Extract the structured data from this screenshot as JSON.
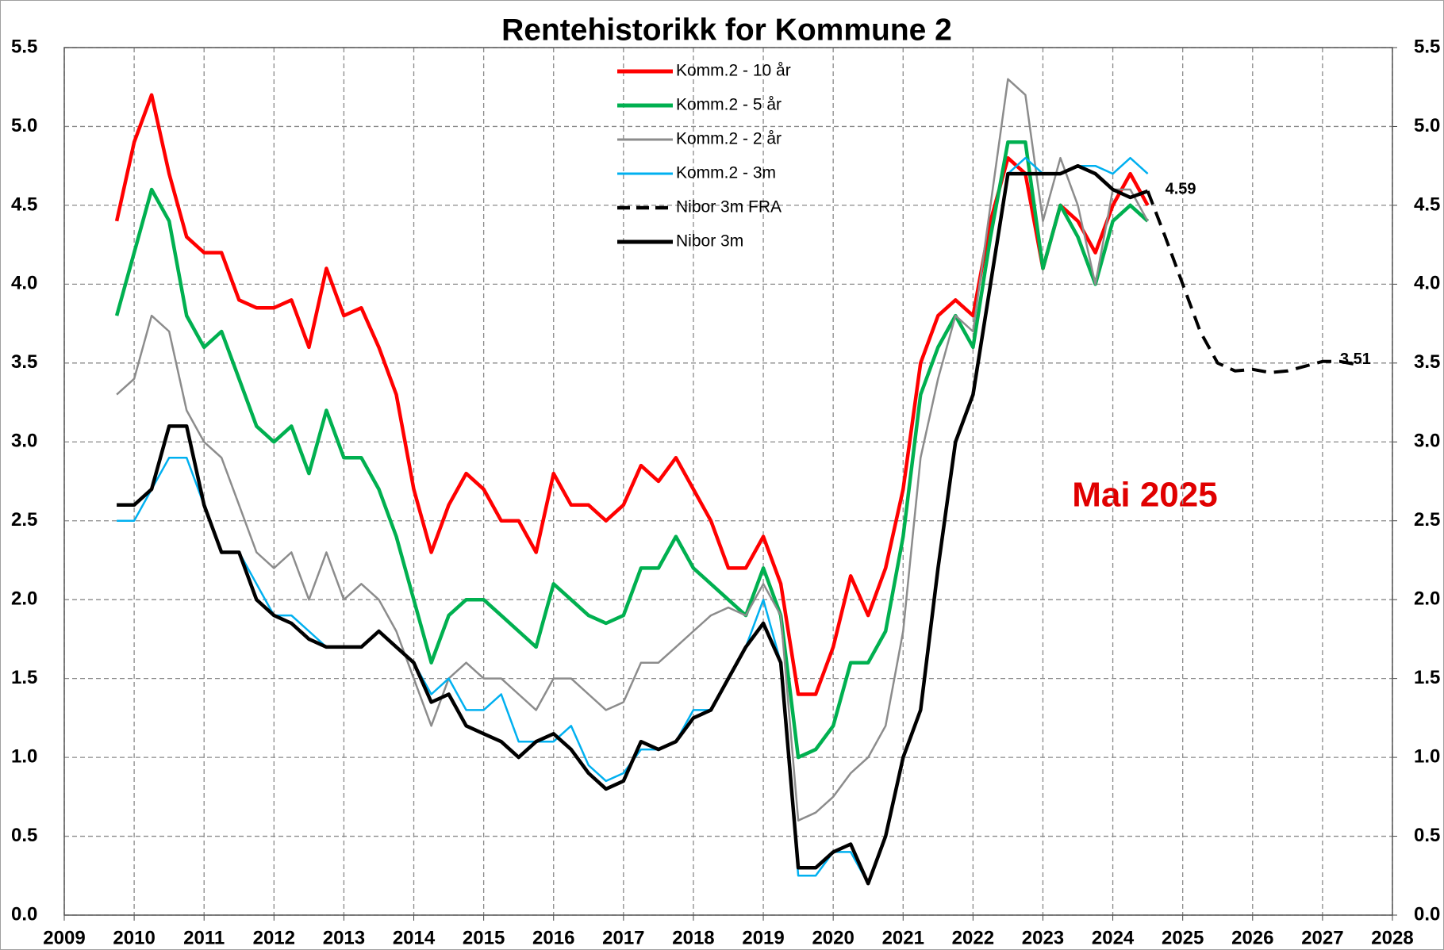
{
  "chart_data": {
    "type": "line",
    "title": "Rentehistorikk for Kommune 2",
    "annotation": "Mai 2025",
    "x": [
      2009.75,
      2010,
      2010.25,
      2010.5,
      2010.75,
      2011,
      2011.25,
      2011.5,
      2011.75,
      2012,
      2012.25,
      2012.5,
      2012.75,
      2013,
      2013.25,
      2013.5,
      2013.75,
      2014,
      2014.25,
      2014.5,
      2014.75,
      2015,
      2015.25,
      2015.5,
      2015.75,
      2016,
      2016.25,
      2016.5,
      2016.75,
      2017,
      2017.25,
      2017.5,
      2017.75,
      2018,
      2018.25,
      2018.5,
      2018.75,
      2019,
      2019.25,
      2019.5,
      2019.75,
      2020,
      2020.25,
      2020.5,
      2020.75,
      2021,
      2021.25,
      2021.5,
      2021.75,
      2022,
      2022.25,
      2022.5,
      2022.75,
      2023,
      2023.25,
      2023.5,
      2023.75,
      2024,
      2024.25,
      2024.5,
      2024.75,
      2025,
      2025.25,
      2025.5,
      2025.75,
      2026,
      2026.25,
      2026.5,
      2026.75,
      2027,
      2027.25,
      2027.5
    ],
    "series": [
      {
        "name": "Komm.2 - 10 år",
        "color": "#ff0000",
        "values": [
          4.4,
          4.9,
          5.2,
          4.7,
          4.3,
          4.2,
          4.2,
          3.9,
          3.85,
          3.85,
          3.9,
          3.6,
          4.1,
          3.8,
          3.85,
          3.6,
          3.3,
          2.7,
          2.3,
          2.6,
          2.8,
          2.7,
          2.5,
          2.5,
          2.3,
          2.8,
          2.6,
          2.6,
          2.5,
          2.6,
          2.85,
          2.75,
          2.9,
          2.7,
          2.5,
          2.2,
          2.2,
          2.4,
          2.1,
          1.4,
          1.4,
          1.7,
          2.15,
          1.9,
          2.2,
          2.7,
          3.5,
          3.8,
          3.9,
          3.8,
          4.4,
          4.8,
          4.7,
          4.1,
          4.5,
          4.4,
          4.2,
          4.5,
          4.7,
          4.5,
          null,
          null,
          null,
          null,
          null,
          null,
          null,
          null,
          null,
          null,
          null,
          null
        ]
      },
      {
        "name": "Komm.2 - 5 år",
        "color": "#00b050",
        "values": [
          3.8,
          4.2,
          4.6,
          4.4,
          3.8,
          3.6,
          3.7,
          3.4,
          3.1,
          3.0,
          3.1,
          2.8,
          3.2,
          2.9,
          2.9,
          2.7,
          2.4,
          2.0,
          1.6,
          1.9,
          2.0,
          2.0,
          1.9,
          1.8,
          1.7,
          2.1,
          2.0,
          1.9,
          1.85,
          1.9,
          2.2,
          2.2,
          2.4,
          2.2,
          2.1,
          2.0,
          1.9,
          2.2,
          1.9,
          1.0,
          1.05,
          1.2,
          1.6,
          1.6,
          1.8,
          2.4,
          3.3,
          3.6,
          3.8,
          3.6,
          4.3,
          4.9,
          4.9,
          4.1,
          4.5,
          4.3,
          4.0,
          4.4,
          4.5,
          4.4,
          null,
          null,
          null,
          null,
          null,
          null,
          null,
          null,
          null,
          null,
          null,
          null
        ]
      },
      {
        "name": "Komm.2 - 2 år",
        "color": "#8c8c8c",
        "values": [
          3.3,
          3.4,
          3.8,
          3.7,
          3.2,
          3.0,
          2.9,
          2.6,
          2.3,
          2.2,
          2.3,
          2.0,
          2.3,
          2.0,
          2.1,
          2.0,
          1.8,
          1.5,
          1.2,
          1.5,
          1.6,
          1.5,
          1.5,
          1.4,
          1.3,
          1.5,
          1.5,
          1.4,
          1.3,
          1.35,
          1.6,
          1.6,
          1.7,
          1.8,
          1.9,
          1.95,
          1.9,
          2.1,
          1.9,
          0.6,
          0.65,
          0.75,
          0.9,
          1.0,
          1.2,
          1.8,
          2.9,
          3.4,
          3.8,
          3.7,
          4.5,
          5.3,
          5.2,
          4.4,
          4.8,
          4.5,
          4.0,
          4.6,
          4.6,
          4.4,
          null,
          null,
          null,
          null,
          null,
          null,
          null,
          null,
          null,
          null,
          null,
          null
        ]
      },
      {
        "name": "Komm.2 - 3m",
        "color": "#00b0f0",
        "values": [
          2.5,
          2.5,
          2.7,
          2.9,
          2.9,
          2.6,
          2.3,
          2.3,
          2.1,
          1.9,
          1.9,
          1.8,
          1.7,
          1.7,
          1.7,
          1.8,
          1.7,
          1.6,
          1.4,
          1.5,
          1.3,
          1.3,
          1.4,
          1.1,
          1.1,
          1.1,
          1.2,
          0.95,
          0.85,
          0.9,
          1.05,
          1.05,
          1.1,
          1.3,
          1.3,
          1.5,
          1.7,
          2.0,
          1.6,
          0.25,
          0.25,
          0.4,
          0.4,
          0.2,
          0.5,
          1.0,
          1.3,
          2.2,
          3.0,
          3.3,
          4.0,
          4.7,
          4.8,
          4.7,
          4.7,
          4.75,
          4.75,
          4.7,
          4.8,
          4.7,
          null,
          null,
          null,
          null,
          null,
          null,
          null,
          null,
          null,
          null,
          null,
          null
        ]
      },
      {
        "name": "Nibor 3m FRA",
        "color": "#000000",
        "dashed": true,
        "values": [
          null,
          null,
          null,
          null,
          null,
          null,
          null,
          null,
          null,
          null,
          null,
          null,
          null,
          null,
          null,
          null,
          null,
          null,
          null,
          null,
          null,
          null,
          null,
          null,
          null,
          null,
          null,
          null,
          null,
          null,
          null,
          null,
          null,
          null,
          null,
          null,
          null,
          null,
          null,
          null,
          null,
          null,
          null,
          null,
          null,
          null,
          null,
          null,
          null,
          null,
          null,
          null,
          null,
          null,
          null,
          null,
          null,
          null,
          null,
          4.59,
          4.3,
          4.0,
          3.7,
          3.5,
          3.45,
          3.46,
          3.44,
          3.45,
          3.48,
          3.51,
          3.51,
          3.49
        ],
        "value_labels": [
          null,
          null,
          null,
          null,
          null,
          null,
          null,
          null,
          null,
          null,
          null,
          null,
          null,
          null,
          null,
          null,
          null,
          null,
          null,
          null,
          null,
          null,
          null,
          null,
          null,
          null,
          null,
          null,
          null,
          null,
          null,
          null,
          null,
          null,
          null,
          null,
          null,
          null,
          null,
          null,
          null,
          null,
          null,
          null,
          null,
          null,
          null,
          null,
          null,
          null,
          null,
          null,
          null,
          null,
          null,
          null,
          null,
          null,
          null,
          "4.59",
          null,
          null,
          null,
          null,
          null,
          null,
          null,
          null,
          null,
          "3.51",
          null,
          null
        ]
      },
      {
        "name": "Nibor 3m",
        "color": "#000000",
        "values": [
          2.6,
          2.6,
          2.7,
          3.1,
          3.1,
          2.6,
          2.3,
          2.3,
          2.0,
          1.9,
          1.85,
          1.75,
          1.7,
          1.7,
          1.7,
          1.8,
          1.7,
          1.6,
          1.35,
          1.4,
          1.2,
          1.15,
          1.1,
          1.0,
          1.1,
          1.15,
          1.05,
          0.9,
          0.8,
          0.85,
          1.1,
          1.05,
          1.1,
          1.25,
          1.3,
          1.5,
          1.7,
          1.85,
          1.6,
          0.3,
          0.3,
          0.4,
          0.45,
          0.2,
          0.5,
          1.0,
          1.3,
          2.2,
          3.0,
          3.3,
          4.0,
          4.7,
          4.7,
          4.7,
          4.7,
          4.75,
          4.7,
          4.6,
          4.55,
          4.59,
          null,
          null,
          null,
          null,
          null,
          null,
          null,
          null,
          null,
          null,
          null,
          null
        ]
      }
    ],
    "xlim": [
      2009,
      2028
    ],
    "xticks": [
      2009,
      2010,
      2011,
      2012,
      2013,
      2014,
      2015,
      2016,
      2017,
      2018,
      2019,
      2020,
      2021,
      2022,
      2023,
      2024,
      2025,
      2026,
      2027,
      2028
    ],
    "ylim": [
      0,
      5.5
    ],
    "yticks": [
      {
        "value": 0,
        "label": "0.0"
      },
      {
        "value": 0.5,
        "label": "0.5"
      },
      {
        "value": 1,
        "label": "1.0"
      },
      {
        "value": 1.5,
        "label": "1.5"
      },
      {
        "value": 2,
        "label": "2.0"
      },
      {
        "value": 2.5,
        "label": "2.5"
      },
      {
        "value": 3,
        "label": "3.0"
      },
      {
        "value": 3.5,
        "label": "3.5"
      },
      {
        "value": 4,
        "label": "4.0"
      },
      {
        "value": 4.5,
        "label": "4.5"
      },
      {
        "value": 5,
        "label": "5.0"
      },
      {
        "value": 5.5,
        "label": "5.5"
      }
    ],
    "y2lim": [
      0,
      5.5
    ],
    "y2ticks": [
      {
        "value": 0,
        "label": "0.0"
      },
      {
        "value": 0.5,
        "label": "0.5"
      },
      {
        "value": 1,
        "label": "1.0"
      },
      {
        "value": 1.5,
        "label": "1.5"
      },
      {
        "value": 2,
        "label": "2.0"
      },
      {
        "value": 2.5,
        "label": "2.5"
      },
      {
        "value": 3,
        "label": "3.0"
      },
      {
        "value": 3.5,
        "label": "3.5"
      },
      {
        "value": 4,
        "label": "4.0"
      },
      {
        "value": 4.5,
        "label": "4.5"
      },
      {
        "value": 5,
        "label": "5.0"
      },
      {
        "value": 5.5,
        "label": "5.5"
      }
    ],
    "grid": true,
    "legend": "top"
  }
}
